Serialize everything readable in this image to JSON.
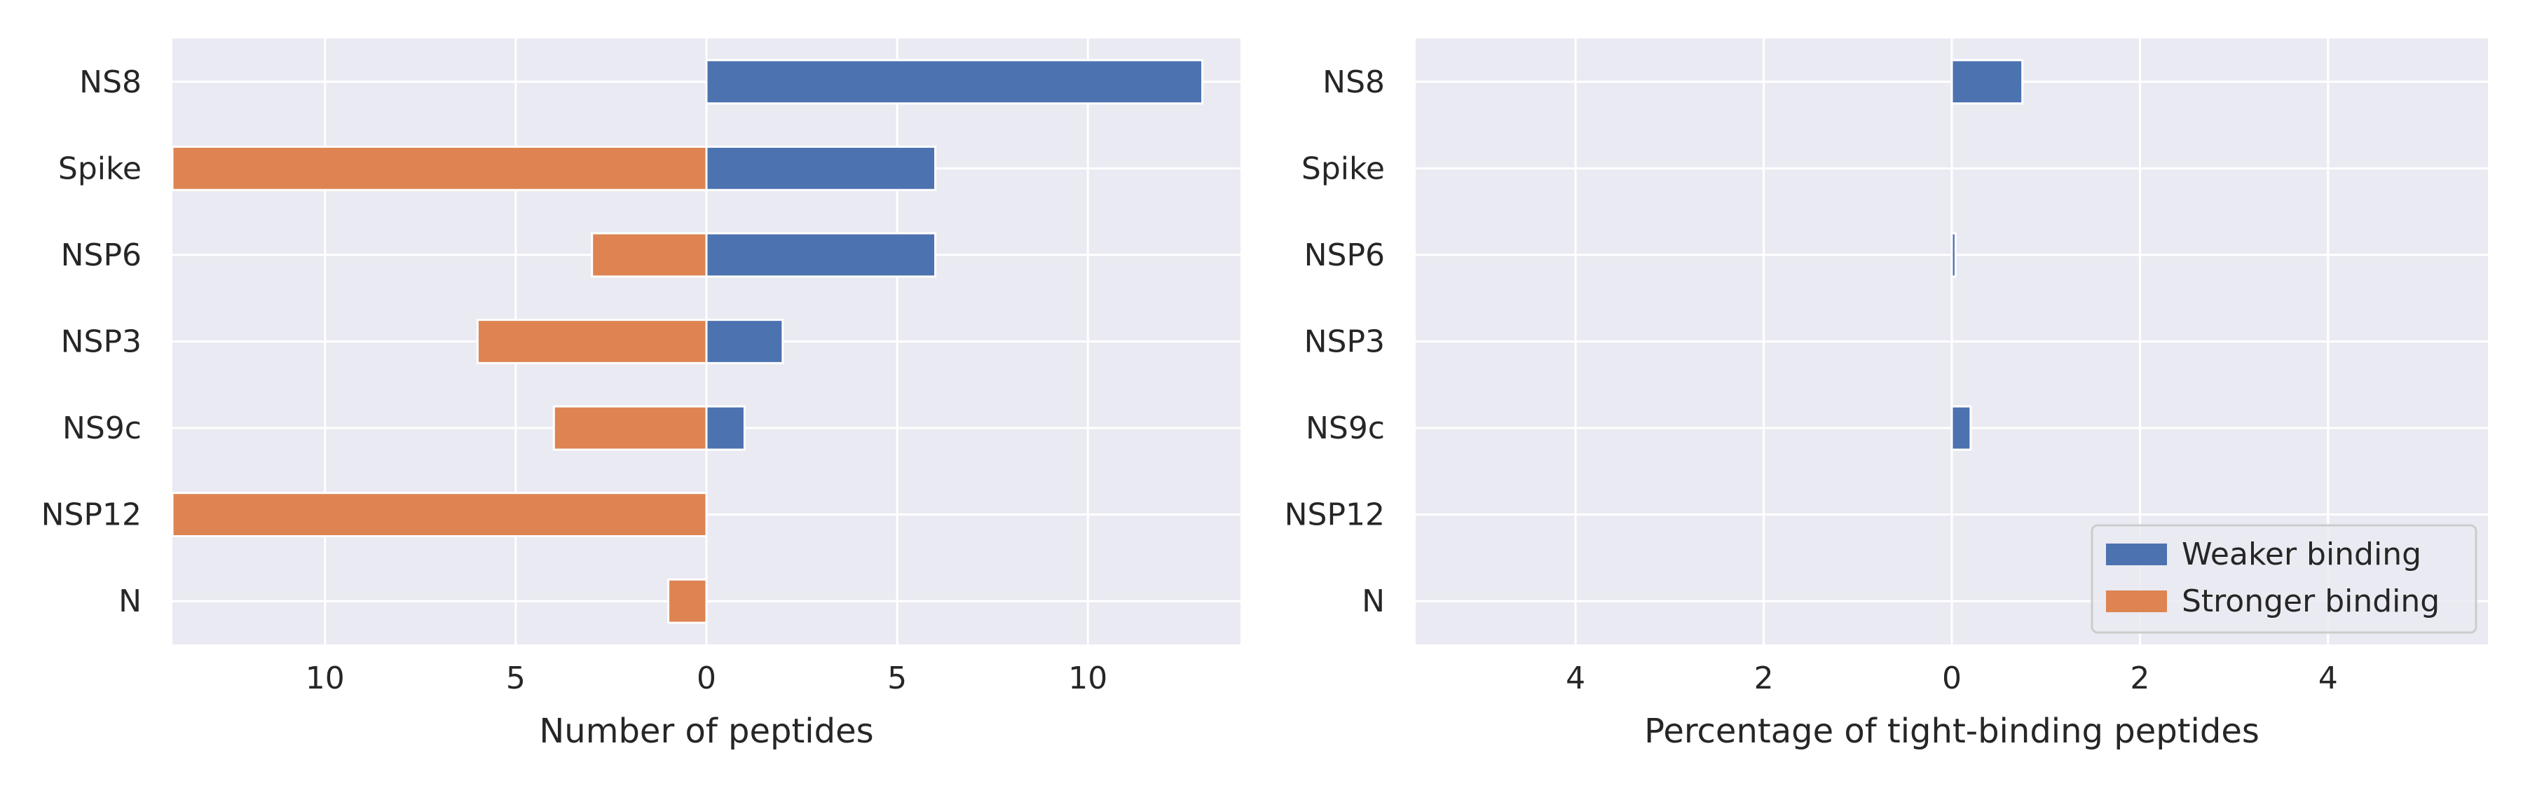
{
  "colors": {
    "background": "#ffffff",
    "plot_background": "#eaeaf2",
    "grid": "#ffffff",
    "text": "#262626",
    "weaker": "#4c72b0",
    "stronger": "#dd8452"
  },
  "chart_data": [
    {
      "type": "bar",
      "orientation": "horizontal",
      "categories": [
        "NS8",
        "Spike",
        "NSP6",
        "NSP3",
        "NS9c",
        "NSP12",
        "N"
      ],
      "series": [
        {
          "name": "Weaker binding",
          "direction": "right",
          "values": [
            13,
            6,
            6,
            2,
            1,
            0,
            0
          ]
        },
        {
          "name": "Stronger binding",
          "direction": "left",
          "values": [
            0,
            14,
            3,
            6,
            4,
            14,
            1
          ]
        }
      ],
      "xlabel": "Number of peptides",
      "xlim": [
        -14,
        14
      ],
      "xticks": [
        -10,
        -5,
        0,
        5,
        10
      ],
      "xtick_labels": [
        "10",
        "5",
        "0",
        "5",
        "10"
      ],
      "grid": true,
      "legend": "none"
    },
    {
      "type": "bar",
      "orientation": "horizontal",
      "categories": [
        "NS8",
        "Spike",
        "NSP6",
        "NSP3",
        "NS9c",
        "NSP12",
        "N"
      ],
      "series": [
        {
          "name": "Weaker binding",
          "direction": "right",
          "values": [
            0.75,
            0,
            0.04,
            0,
            0.2,
            0,
            0
          ]
        },
        {
          "name": "Stronger binding",
          "direction": "left",
          "values": [
            0,
            0,
            0,
            0,
            0,
            0,
            0
          ]
        }
      ],
      "xlabel": "Percentage of tight-binding peptides",
      "xlim": [
        -5.7,
        5.7
      ],
      "xticks": [
        -4,
        -2,
        0,
        2,
        4
      ],
      "xtick_labels": [
        "4",
        "2",
        "0",
        "2",
        "4"
      ],
      "grid": true,
      "legend": "lower-right",
      "legend_entries": [
        "Weaker binding",
        "Stronger binding"
      ]
    }
  ]
}
